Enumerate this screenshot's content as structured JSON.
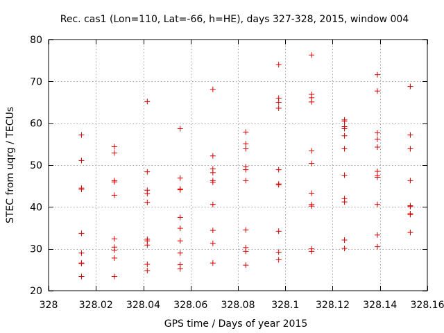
{
  "chart_data": {
    "type": "scatter",
    "title": "Rec. cas1 (Lon=110, Lat=-66, h=HE), days 327-328, 2015, window 004",
    "xlabel": "GPS time / Days of year 2015",
    "ylabel": "STEC from uqrg / TECUs",
    "xlim": [
      328,
      328.16
    ],
    "ylim": [
      20,
      80
    ],
    "x_ticks": [
      328,
      328.02,
      328.04,
      328.06,
      328.08,
      328.1,
      328.12,
      328.14,
      328.16
    ],
    "x_tick_labels": [
      "328",
      "328.02",
      "328.04",
      "328.06",
      "328.08",
      "328.1",
      "328.12",
      "328.14",
      "328.16"
    ],
    "y_ticks": [
      20,
      30,
      40,
      50,
      60,
      70,
      80
    ],
    "y_tick_labels": [
      "20",
      "30",
      "40",
      "50",
      "60",
      "70",
      "80"
    ],
    "grid": true,
    "marker": "+",
    "marker_color": "#d40000",
    "points": [
      {
        "x": 328.0139,
        "y": [
          57.2,
          51.1,
          44.5,
          44.2,
          33.7,
          29.0,
          26.6,
          26.5,
          23.4
        ]
      },
      {
        "x": 328.0278,
        "y": [
          54.4,
          52.9,
          46.3,
          46.0,
          42.8,
          32.4,
          30.4,
          29.7,
          27.8,
          23.4
        ]
      },
      {
        "x": 328.0417,
        "y": [
          65.2,
          48.4,
          44.0,
          43.2,
          41.1,
          32.3,
          31.9,
          30.9,
          26.3,
          24.8
        ]
      },
      {
        "x": 328.0556,
        "y": [
          58.7,
          46.9,
          44.3,
          44.1,
          37.5,
          34.9,
          31.9,
          29.0,
          26.2,
          25.2
        ]
      },
      {
        "x": 328.0694,
        "y": [
          68.1,
          52.2,
          49.1,
          48.2,
          46.3,
          45.9,
          40.6,
          34.4,
          31.3,
          26.6
        ]
      },
      {
        "x": 328.0833,
        "y": [
          57.9,
          55.1,
          53.9,
          49.6,
          48.9,
          46.3,
          34.5,
          30.3,
          29.4,
          26.1
        ]
      },
      {
        "x": 328.0972,
        "y": [
          74.0,
          66.0,
          65.0,
          63.6,
          48.9,
          45.5,
          45.3,
          34.2,
          29.2,
          27.4
        ]
      },
      {
        "x": 328.1111,
        "y": [
          76.3,
          66.9,
          66.1,
          65.1,
          53.4,
          50.4,
          43.3,
          40.6,
          40.2,
          30.0,
          29.4
        ]
      },
      {
        "x": 328.125,
        "y": [
          60.8,
          60.5,
          59.2,
          58.7,
          57.0,
          53.9,
          47.6,
          42.0,
          41.2,
          32.1,
          30.1
        ]
      },
      {
        "x": 328.1389,
        "y": [
          71.6,
          67.7,
          57.7,
          56.2,
          54.3,
          48.5,
          47.5,
          47.1,
          40.6,
          33.3,
          30.5
        ]
      },
      {
        "x": 328.1528,
        "y": [
          68.8,
          57.2,
          53.9,
          46.3,
          40.3,
          40.1,
          38.4,
          38.2,
          33.9
        ]
      }
    ]
  }
}
